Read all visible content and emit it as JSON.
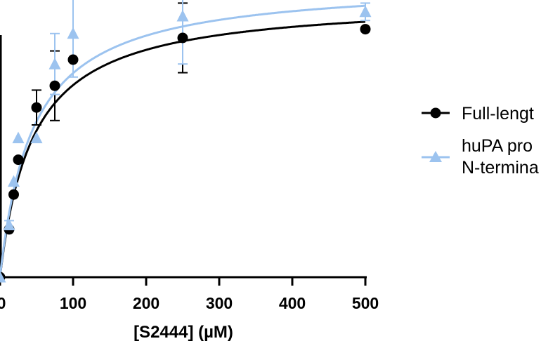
{
  "chart_data": {
    "type": "scatter",
    "xlabel": "[S2444] (µM)",
    "ylabel": "",
    "xlim": [
      0,
      500
    ],
    "xticks": [
      0,
      100,
      200,
      300,
      400,
      500
    ],
    "grid": false,
    "legend_position": "right",
    "series": [
      {
        "name": "Full-lengt",
        "color": "#000000",
        "marker": "circle",
        "x": [
          0,
          12.5,
          18.75,
          25,
          50,
          75,
          100,
          250,
          500
        ],
        "y": [
          0.0,
          0.11,
          0.19,
          0.27,
          0.39,
          0.44,
          0.5,
          0.55,
          0.57
        ],
        "error": [
          0,
          0,
          0,
          0,
          0.04,
          0.08,
          0,
          0.08,
          0
        ],
        "fit": {
          "vmax": 0.64,
          "km": 45
        }
      },
      {
        "name": "huPA pro\nN-termina",
        "color": "#9cc3ef",
        "marker": "triangle",
        "x": [
          0,
          12.5,
          18.75,
          25,
          50,
          75,
          100,
          250,
          500
        ],
        "y": [
          0.0,
          0.12,
          0.22,
          0.32,
          0.32,
          0.49,
          0.56,
          0.6,
          0.61
        ],
        "error": [
          0,
          0.01,
          0,
          0,
          0,
          0.07,
          0.1,
          0.11,
          0.02
        ],
        "fit": {
          "vmax": 0.68,
          "km": 45
        }
      }
    ]
  }
}
